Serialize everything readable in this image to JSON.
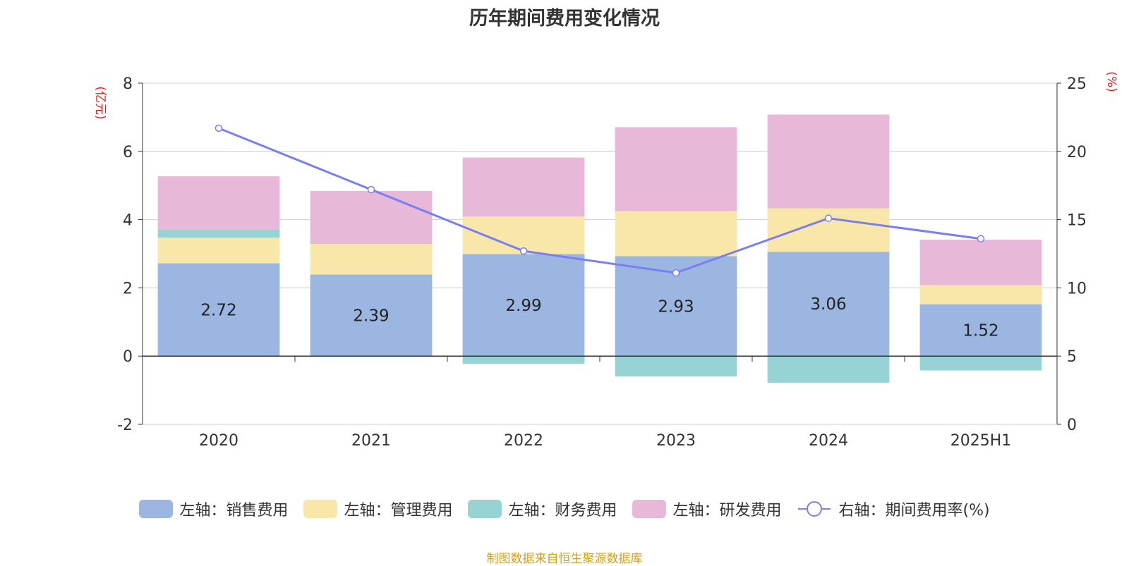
{
  "chart_data": {
    "type": "bar",
    "title": "历年期间费用变化情况",
    "categories": [
      "2020",
      "2021",
      "2022",
      "2023",
      "2024",
      "2025H1"
    ],
    "left_axis": {
      "unit_label": "(亿元)",
      "ylim": [
        -2,
        8
      ],
      "ticks": [
        "-2",
        "0",
        "2",
        "4",
        "6",
        "8"
      ]
    },
    "right_axis": {
      "unit_label": "(%)",
      "ylim": [
        0,
        25
      ],
      "ticks": [
        "0",
        "5",
        "10",
        "15",
        "20",
        "25"
      ]
    },
    "series": [
      {
        "name": "左轴：销售费用",
        "color": "#9bb7e1",
        "stack": true,
        "values": [
          2.72,
          2.39,
          2.99,
          2.93,
          3.06,
          1.52
        ],
        "data_labels": [
          "2.72",
          "2.39",
          "2.99",
          "2.93",
          "3.06",
          "1.52"
        ]
      },
      {
        "name": "左轴：管理费用",
        "color": "#f8e7a8",
        "stack": true,
        "values": [
          0.75,
          0.9,
          1.1,
          1.32,
          1.27,
          0.56
        ]
      },
      {
        "name": "左轴：财务费用",
        "color": "#97d3d4",
        "stack": true,
        "values": [
          0.24,
          -0.02,
          -0.23,
          -0.6,
          -0.78,
          -0.42
        ]
      },
      {
        "name": "左轴：研发费用",
        "color": "#e8b8d9",
        "stack": true,
        "values": [
          1.56,
          1.55,
          1.73,
          2.46,
          2.75,
          1.33
        ]
      },
      {
        "name": "右轴：期间费用率(%)",
        "color": "#7a7ff0",
        "type": "line",
        "axis": "right",
        "values": [
          21.7,
          17.2,
          12.7,
          11.1,
          15.1,
          13.6
        ]
      }
    ],
    "grid": true,
    "legend_position": "bottom"
  },
  "source_note": "制图数据来自恒生聚源数据库"
}
